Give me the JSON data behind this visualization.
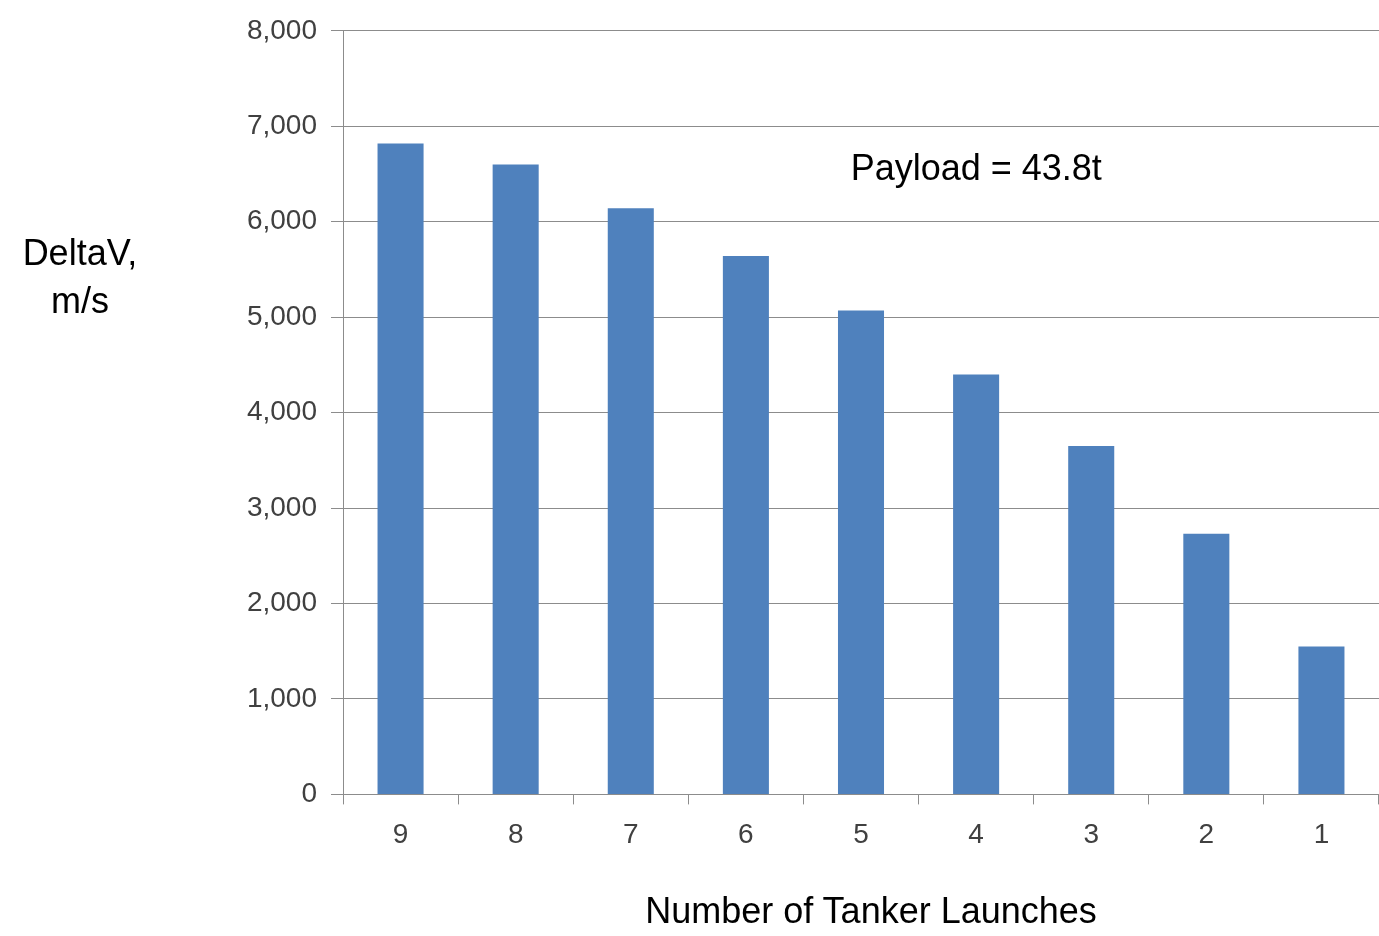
{
  "chart_data": {
    "type": "bar",
    "xlabel": "Number of Tanker Launches",
    "ylabel": "DeltaV, m/s",
    "categories": [
      "9",
      "8",
      "7",
      "6",
      "5",
      "4",
      "3",
      "2",
      "1"
    ],
    "values": [
      6820,
      6600,
      6140,
      5640,
      5070,
      4400,
      3650,
      2730,
      1550
    ],
    "color": "#4f81bd",
    "ylim": [
      0,
      8000
    ],
    "yticks": [
      {
        "value": 0,
        "label": "0"
      },
      {
        "value": 1000,
        "label": "1,000"
      },
      {
        "value": 2000,
        "label": "2,000"
      },
      {
        "value": 3000,
        "label": "3,000"
      },
      {
        "value": 4000,
        "label": "4,000"
      },
      {
        "value": 5000,
        "label": "5,000"
      },
      {
        "value": 6000,
        "label": "6,000"
      },
      {
        "value": 7000,
        "label": "7,000"
      },
      {
        "value": 8000,
        "label": "8,000"
      }
    ],
    "grid": "y",
    "legend": false,
    "annotations": [
      "Payload = 43.8t"
    ]
  }
}
